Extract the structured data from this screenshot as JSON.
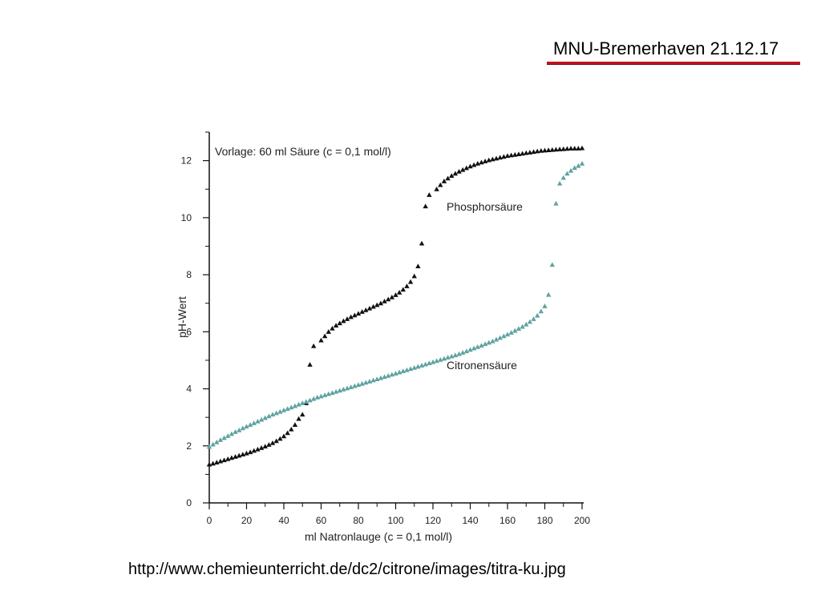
{
  "header": {
    "text": "MNU-Bremerhaven  21.12.17",
    "underline_color": "#c0141c"
  },
  "source_url": "http://www.chemieunterricht.de/dc2/citrone/images/titra-ku.jpg",
  "chart_data": {
    "type": "scatter",
    "title": "Vorlage: 60 ml Säure (c = 0,1 mol/l)",
    "xlabel": "ml Natronlauge (c = 0,1 mol/l)",
    "ylabel": "pH-Wert",
    "xlim": [
      0,
      200
    ],
    "ylim": [
      0,
      13
    ],
    "xticks": [
      0,
      20,
      40,
      60,
      80,
      100,
      120,
      140,
      160,
      180,
      200
    ],
    "yticks": [
      0,
      2,
      4,
      6,
      8,
      10,
      12
    ],
    "grid": false,
    "series": [
      {
        "name": "Phosphorsäure",
        "color": "#111111",
        "marker": "triangle",
        "x": [
          0,
          2,
          4,
          6,
          8,
          10,
          12,
          14,
          16,
          18,
          20,
          22,
          24,
          26,
          28,
          30,
          32,
          34,
          36,
          38,
          40,
          42,
          44,
          46,
          48,
          50,
          52,
          54,
          56,
          60,
          62,
          64,
          66,
          68,
          70,
          72,
          74,
          76,
          78,
          80,
          82,
          84,
          86,
          88,
          90,
          92,
          94,
          96,
          98,
          100,
          102,
          104,
          106,
          108,
          110,
          112,
          114,
          116,
          118,
          122,
          124,
          126,
          128,
          130,
          132,
          134,
          136,
          138,
          140,
          142,
          144,
          146,
          148,
          150,
          152,
          154,
          156,
          158,
          160,
          162,
          164,
          166,
          168,
          170,
          172,
          174,
          176,
          178,
          180,
          182,
          184,
          186,
          188,
          190,
          192,
          194,
          196,
          198,
          200
        ],
        "y": [
          1.35,
          1.38,
          1.42,
          1.46,
          1.5,
          1.54,
          1.58,
          1.62,
          1.66,
          1.7,
          1.74,
          1.78,
          1.83,
          1.88,
          1.93,
          1.98,
          2.04,
          2.1,
          2.17,
          2.25,
          2.34,
          2.45,
          2.58,
          2.74,
          2.95,
          3.1,
          3.5,
          4.85,
          5.5,
          5.7,
          5.85,
          6.0,
          6.12,
          6.22,
          6.3,
          6.38,
          6.45,
          6.52,
          6.58,
          6.64,
          6.7,
          6.76,
          6.82,
          6.88,
          6.94,
          7.0,
          7.07,
          7.14,
          7.21,
          7.29,
          7.38,
          7.48,
          7.6,
          7.75,
          7.95,
          8.3,
          9.1,
          10.4,
          10.8,
          11.0,
          11.15,
          11.28,
          11.38,
          11.47,
          11.55,
          11.62,
          11.68,
          11.74,
          11.8,
          11.85,
          11.9,
          11.94,
          11.98,
          12.02,
          12.05,
          12.08,
          12.11,
          12.14,
          12.17,
          12.19,
          12.21,
          12.23,
          12.25,
          12.27,
          12.29,
          12.31,
          12.33,
          12.35,
          12.36,
          12.37,
          12.38,
          12.39,
          12.4,
          12.41,
          12.42,
          12.43,
          12.43,
          12.43,
          12.44
        ],
        "label": "Phosphorsäure"
      },
      {
        "name": "Citronensäure",
        "color": "#5fa3a0",
        "marker": "triangle",
        "x": [
          0,
          2,
          4,
          6,
          8,
          10,
          12,
          14,
          16,
          18,
          20,
          22,
          24,
          26,
          28,
          30,
          32,
          34,
          36,
          38,
          40,
          42,
          44,
          46,
          48,
          50,
          52,
          54,
          56,
          58,
          60,
          62,
          64,
          66,
          68,
          70,
          72,
          74,
          76,
          78,
          80,
          82,
          84,
          86,
          88,
          90,
          92,
          94,
          96,
          98,
          100,
          102,
          104,
          106,
          108,
          110,
          112,
          114,
          116,
          118,
          120,
          122,
          124,
          126,
          128,
          130,
          132,
          134,
          136,
          138,
          140,
          142,
          144,
          146,
          148,
          150,
          152,
          154,
          156,
          158,
          160,
          162,
          164,
          166,
          168,
          170,
          172,
          174,
          176,
          178,
          180,
          182,
          184,
          186,
          188,
          190,
          192,
          194,
          196,
          198,
          200
        ],
        "y": [
          1.97,
          2.05,
          2.13,
          2.21,
          2.28,
          2.35,
          2.42,
          2.49,
          2.55,
          2.62,
          2.68,
          2.74,
          2.8,
          2.86,
          2.92,
          2.98,
          3.04,
          3.1,
          3.15,
          3.2,
          3.25,
          3.3,
          3.35,
          3.4,
          3.45,
          3.5,
          3.55,
          3.6,
          3.65,
          3.7,
          3.74,
          3.78,
          3.82,
          3.86,
          3.9,
          3.94,
          3.98,
          4.02,
          4.06,
          4.1,
          4.14,
          4.18,
          4.22,
          4.26,
          4.3,
          4.34,
          4.38,
          4.42,
          4.46,
          4.5,
          4.54,
          4.58,
          4.62,
          4.66,
          4.7,
          4.74,
          4.78,
          4.82,
          4.86,
          4.9,
          4.94,
          4.98,
          5.02,
          5.06,
          5.1,
          5.14,
          5.18,
          5.22,
          5.27,
          5.32,
          5.37,
          5.42,
          5.47,
          5.52,
          5.57,
          5.62,
          5.67,
          5.73,
          5.79,
          5.85,
          5.91,
          5.97,
          6.04,
          6.11,
          6.18,
          6.26,
          6.35,
          6.45,
          6.57,
          6.72,
          6.9,
          7.3,
          8.35,
          10.5,
          11.2,
          11.4,
          11.55,
          11.65,
          11.75,
          11.82,
          11.9
        ],
        "label": "Citronensäure"
      }
    ]
  }
}
